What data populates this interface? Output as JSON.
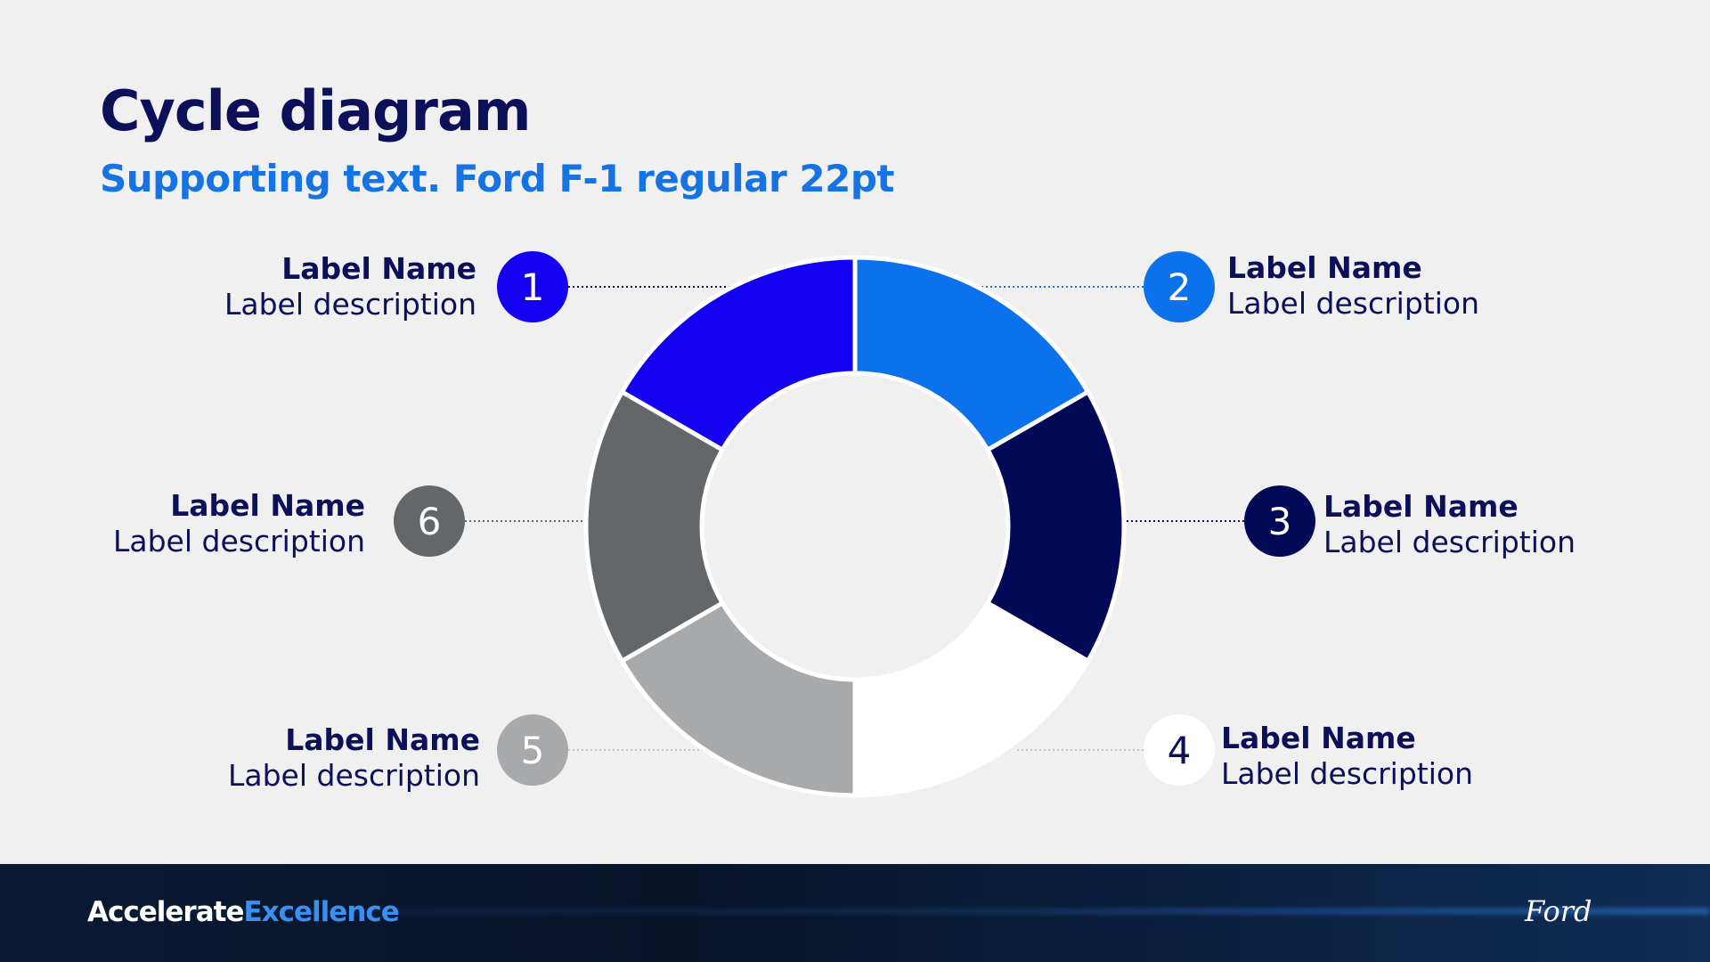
{
  "header": {
    "title": "Cycle diagram",
    "subtitle": "Supporting text. Ford F-1 regular 22pt"
  },
  "cycle": {
    "segments": [
      {
        "number": "1",
        "name": "Label Name",
        "description": "Label description",
        "color": "#1400f0",
        "marker_color": "#1400f0",
        "number_color": "#ffffff",
        "side": "left"
      },
      {
        "number": "2",
        "name": "Label Name",
        "description": "Label description",
        "color": "#0b72ec",
        "marker_color": "#0b72ec",
        "number_color": "#ffffff",
        "side": "right"
      },
      {
        "number": "3",
        "name": "Label Name",
        "description": "Label description",
        "color": "#020a57",
        "marker_color": "#020a57",
        "number_color": "#ffffff",
        "side": "right"
      },
      {
        "number": "4",
        "name": "Label Name",
        "description": "Label description",
        "color": "#ffffff",
        "marker_color": "#ffffff",
        "number_color": "#0b1058",
        "side": "right"
      },
      {
        "number": "5",
        "name": "Label Name",
        "description": "Label description",
        "color": "#a8a9ab",
        "marker_color": "#a8a9ab",
        "number_color": "#ffffff",
        "side": "left"
      },
      {
        "number": "6",
        "name": "Label Name",
        "description": "Label description",
        "color": "#63676a",
        "marker_color": "#63676a",
        "number_color": "#ffffff",
        "side": "left"
      }
    ]
  },
  "footer": {
    "brand_part1": "Accelerate",
    "brand_part2": "Excellence",
    "logo_text": "Ford"
  }
}
